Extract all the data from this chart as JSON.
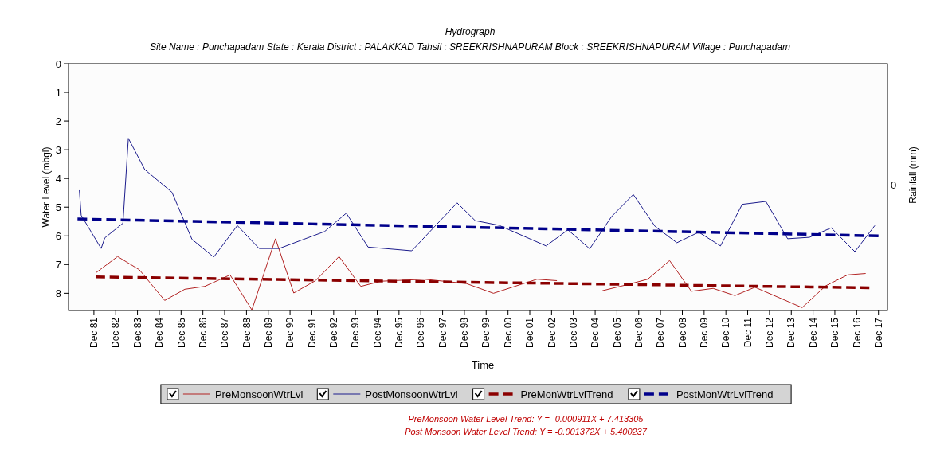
{
  "chart_data": {
    "type": "line",
    "title": "Hydrograph",
    "subtitle": "Site Name : Punchapadam  State : Kerala District : PALAKKAD  Tahsil : SREEKRISHNAPURAM  Block : SREEKRISHNAPURAM Village : Punchapadam",
    "xlabel": "Time",
    "ylabel": "Water Level (mbgl)",
    "y2label": "Rainfall (mm)",
    "xlim": [
      "1980-10",
      "2018-05"
    ],
    "xticks": [
      {
        "value": "1981-12",
        "label": "Dec 81"
      },
      {
        "value": "1982-12",
        "label": "Dec 82"
      },
      {
        "value": "1983-12",
        "label": "Dec 83"
      },
      {
        "value": "1984-12",
        "label": "Dec 84"
      },
      {
        "value": "1985-12",
        "label": "Dec 85"
      },
      {
        "value": "1986-12",
        "label": "Dec 86"
      },
      {
        "value": "1987-12",
        "label": "Dec 87"
      },
      {
        "value": "1988-12",
        "label": "Dec 88"
      },
      {
        "value": "1989-12",
        "label": "Dec 89"
      },
      {
        "value": "1990-12",
        "label": "Dec 90"
      },
      {
        "value": "1991-12",
        "label": "Dec 91"
      },
      {
        "value": "1992-12",
        "label": "Dec 92"
      },
      {
        "value": "1993-12",
        "label": "Dec 93"
      },
      {
        "value": "1994-12",
        "label": "Dec 94"
      },
      {
        "value": "1995-12",
        "label": "Dec 95"
      },
      {
        "value": "1996-12",
        "label": "Dec 96"
      },
      {
        "value": "1997-12",
        "label": "Dec 97"
      },
      {
        "value": "1998-12",
        "label": "Dec 98"
      },
      {
        "value": "1999-12",
        "label": "Dec 99"
      },
      {
        "value": "2000-12",
        "label": "Dec 00"
      },
      {
        "value": "2001-12",
        "label": "Dec 01"
      },
      {
        "value": "2002-12",
        "label": "Dec 02"
      },
      {
        "value": "2003-12",
        "label": "Dec 03"
      },
      {
        "value": "2004-12",
        "label": "Dec 04"
      },
      {
        "value": "2005-12",
        "label": "Dec 05"
      },
      {
        "value": "2006-12",
        "label": "Dec 06"
      },
      {
        "value": "2007-12",
        "label": "Dec 07"
      },
      {
        "value": "2008-12",
        "label": "Dec 08"
      },
      {
        "value": "2009-12",
        "label": "Dec 09"
      },
      {
        "value": "2010-12",
        "label": "Dec 10"
      },
      {
        "value": "2011-12",
        "label": "Dec 11"
      },
      {
        "value": "2012-12",
        "label": "Dec 12"
      },
      {
        "value": "2013-12",
        "label": "Dec 13"
      },
      {
        "value": "2014-12",
        "label": "Dec 14"
      },
      {
        "value": "2015-12",
        "label": "Dec 15"
      },
      {
        "value": "2016-12",
        "label": "Dec 16"
      },
      {
        "value": "2017-12",
        "label": "Dec 17"
      }
    ],
    "ylim": [
      8.6,
      0
    ],
    "yticks": [
      0,
      1,
      2,
      3,
      4,
      5,
      6,
      7,
      8
    ],
    "legend": "bottom",
    "grid": false,
    "series": [
      {
        "name": "PreMonsoonWtrLvl",
        "color": "#b22222",
        "line_style": "solid",
        "x": [
          "1982-01",
          "1983-01",
          "1984-01",
          "1985-03",
          "1986-02",
          "1987-01",
          "1988-03",
          "1989-03",
          "1990-04",
          "1991-02",
          "1992-02",
          "1993-03",
          "1994-03",
          "1995-02",
          "1997-02",
          "1999-01",
          "2000-04",
          "2002-04",
          "2003-03",
          "2004-03",
          "2005-04",
          "2006-05",
          "2007-05",
          "2008-05",
          "2009-05",
          "2010-05",
          "2011-05",
          "2012-04",
          "2014-06",
          "2015-07",
          "2016-07",
          "2017-05"
        ],
        "values": [
          7.29,
          6.72,
          7.18,
          8.25,
          7.86,
          7.76,
          7.36,
          8.58,
          6.1,
          7.99,
          7.56,
          6.72,
          7.76,
          7.58,
          7.51,
          7.66,
          8.0,
          7.51,
          7.56,
          null,
          7.91,
          7.71,
          7.51,
          6.86,
          7.93,
          7.83,
          8.08,
          7.79,
          8.5,
          7.74,
          7.36,
          7.31
        ]
      },
      {
        "name": "PostMonsoonWtrLvl",
        "color": "#1c1c8c",
        "line_style": "solid",
        "x": [
          "1981-04",
          "1981-05",
          "1982-04",
          "1982-06",
          "1983-04",
          "1983-07",
          "1984-04",
          "1985-07",
          "1986-06",
          "1987-06",
          "1988-07",
          "1989-07",
          "1990-06",
          "1992-07",
          "1993-07",
          "1994-07",
          "1996-07",
          "1998-08",
          "1999-06",
          "2000-07",
          "2002-09",
          "2003-09",
          "2004-09",
          "2005-09",
          "2006-09",
          "2007-09",
          "2008-09",
          "2009-09",
          "2010-09",
          "2011-09",
          "2012-10",
          "2013-10",
          "2014-10",
          "2015-10",
          "2016-11",
          "2017-10"
        ],
        "values": [
          4.41,
          5.28,
          6.44,
          6.07,
          5.56,
          2.6,
          3.69,
          4.48,
          6.12,
          6.74,
          5.64,
          6.44,
          6.44,
          5.85,
          5.21,
          6.39,
          6.52,
          4.85,
          5.47,
          5.63,
          6.35,
          5.79,
          6.45,
          5.33,
          4.56,
          5.67,
          6.24,
          5.87,
          6.35,
          4.9,
          4.8,
          6.1,
          6.05,
          5.72,
          6.55,
          5.64
        ]
      },
      {
        "name": "PreMonWtrLvlTrend",
        "color": "#8b0000",
        "line_style": "dashed",
        "x": [
          "1982-01",
          "2017-07"
        ],
        "values": [
          7.43,
          7.81
        ]
      },
      {
        "name": "PostMonWtrLvlTrend",
        "color": "#00008b",
        "line_style": "dashed",
        "x": [
          "1981-03",
          "2017-12"
        ],
        "values": [
          5.41,
          6.0
        ]
      }
    ],
    "annotations": [
      "0",
      "PreMonsoon Water Level Trend: Y = -0.000911X + 7.413305",
      "Post Monsoon Water Level Trend: Y = -0.001372X + 5.400237"
    ]
  }
}
